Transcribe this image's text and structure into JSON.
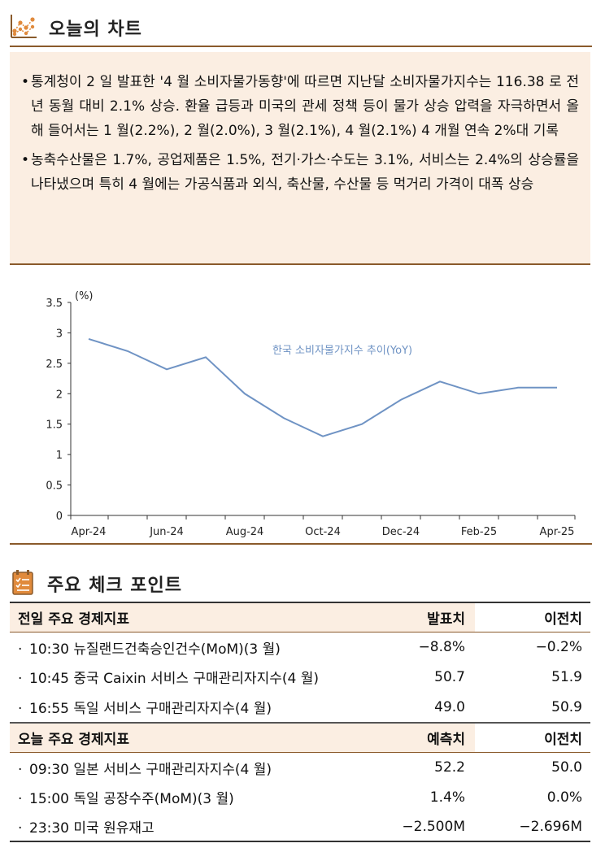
{
  "section1": {
    "title": "오늘의 차트",
    "icon": "chart-dots-icon"
  },
  "bullets": [
    "통계청이 2 일 발표한 '4 월 소비자물가동향'에 따르면 지난달 소비자물가지수는 116.38 로 전년 동월 대비 2.1% 상승. 환율 급등과 미국의 관세 정책 등이 물가 상승 압력을 자극하면서 올해 들어서는 1 월(2.2%), 2 월(2.0%), 3 월(2.1%), 4 월(2.1%) 4 개월 연속 2%대 기록",
    "농축수산물은 1.7%, 공업제품은 1.5%, 전기·가스·수도는 3.1%, 서비스는 2.4%의 상승률을 나타냈으며 특히 4 월에는 가공식품과 외식, 축산물, 수산물 등 먹거리 가격이 대폭 상승"
  ],
  "bullet_mark": "•",
  "chart_data": {
    "type": "line",
    "ylabel": "(%)",
    "ylim": [
      0,
      3.5
    ],
    "yticks": [
      "0",
      "0.5",
      "1",
      "1.5",
      "2",
      "2.5",
      "3",
      "3.5"
    ],
    "categories": [
      "Apr-24",
      "May-24",
      "Jun-24",
      "Jul-24",
      "Aug-24",
      "Sep-24",
      "Oct-24",
      "Nov-24",
      "Dec-24",
      "Jan-25",
      "Feb-25",
      "Mar-25",
      "Apr-25"
    ],
    "xtick_labels": [
      "Apr-24",
      "Jun-24",
      "Aug-24",
      "Oct-24",
      "Dec-24",
      "Feb-25",
      "Apr-25"
    ],
    "series": [
      {
        "name": "한국 소비자물가지수 추이(YoY)",
        "values": [
          2.9,
          2.7,
          2.4,
          2.6,
          2.0,
          1.6,
          1.3,
          1.5,
          1.9,
          2.2,
          2.0,
          2.1,
          2.1
        ],
        "color": "#6f93c4"
      }
    ],
    "grid": false
  },
  "section2": {
    "title": "주요 체크 포인트",
    "icon": "checklist-icon"
  },
  "table": {
    "yesterday": {
      "header": [
        "전일 주요 경제지표",
        "발표치",
        "이전치"
      ],
      "rows": [
        {
          "item": "10:30 뉴질랜드건축승인건수(MoM)(3 월)",
          "actual": "−8.8%",
          "prev": "−0.2%"
        },
        {
          "item": "10:45 중국 Caixin 서비스 구매관리자지수(4 월)",
          "actual": "50.7",
          "prev": "51.9"
        },
        {
          "item": "16:55 독일 서비스 구매관리자지수(4 월)",
          "actual": "49.0",
          "prev": "50.9"
        }
      ]
    },
    "today": {
      "header": [
        "오늘 주요 경제지표",
        "예측치",
        "이전치"
      ],
      "rows": [
        {
          "item": "09:30 일본 서비스 구매관리자지수(4 월)",
          "actual": "52.2",
          "prev": "50.0"
        },
        {
          "item": "15:00 독일 공장수주(MoM)(3 월)",
          "actual": "1.4%",
          "prev": "0.0%"
        },
        {
          "item": "23:30 미국 원유재고",
          "actual": "−2.500M",
          "prev": "−2.696M"
        }
      ]
    },
    "row_mark": "·"
  },
  "colors": {
    "accent": "#8a5a2b",
    "box_bg": "#fbeee2",
    "line": "#6f93c4",
    "icon_orange": "#e08a3c"
  }
}
